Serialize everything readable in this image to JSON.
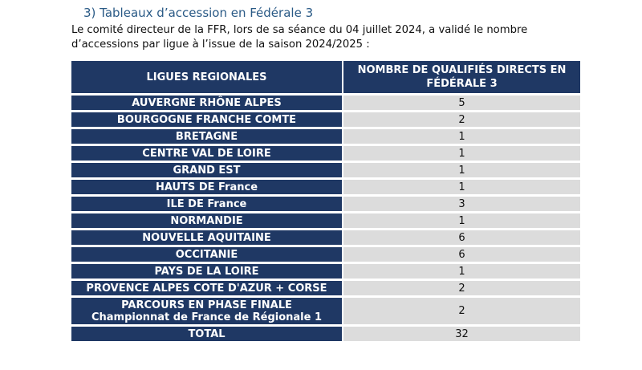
{
  "heading": "3)  Tableaux d’accession en Fédérale 3",
  "intro": {
    "line1": "Le comité directeur de la FFR, lors de sa séance du 04 juillet 2024, a validé le nombre",
    "line2": "d’accessions par ligue à l’issue de la saison 2024/2025 :"
  },
  "table": {
    "header": {
      "col1": "LIGUES REGIONALES",
      "col2_line1": "NOMBRE DE QUALIFIÉS DIRECTS EN",
      "col2_line2": "FÉDÉRALE 3"
    },
    "rows": [
      {
        "ligue": "AUVERGNE RHÔNE ALPES",
        "value": "5"
      },
      {
        "ligue": "BOURGOGNE FRANCHE COMTE",
        "value": "2"
      },
      {
        "ligue": "BRETAGNE",
        "value": "1"
      },
      {
        "ligue": "CENTRE VAL DE LOIRE",
        "value": "1"
      },
      {
        "ligue": "GRAND EST",
        "value": "1"
      },
      {
        "ligue": "HAUTS DE France",
        "value": "1"
      },
      {
        "ligue": "ILE DE France",
        "value": "3"
      },
      {
        "ligue": "NORMANDIE",
        "value": "1"
      },
      {
        "ligue": "NOUVELLE AQUITAINE",
        "value": "6"
      },
      {
        "ligue": "OCCITANIE",
        "value": "6"
      },
      {
        "ligue": "PAYS DE LA LOIRE",
        "value": "1"
      },
      {
        "ligue": "PROVENCE ALPES COTE D'AZUR + CORSE",
        "value": "2"
      }
    ],
    "phase_finale": {
      "line1": "PARCOURS EN PHASE FINALE",
      "line2": "Championnat de France de Régionale 1",
      "value": "2"
    },
    "total": {
      "label": "TOTAL",
      "value": "32"
    }
  }
}
